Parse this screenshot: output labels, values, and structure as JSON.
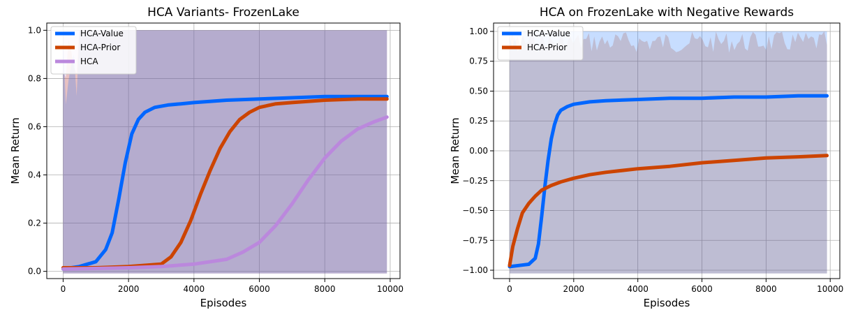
{
  "chart_data": [
    {
      "type": "line",
      "title": "HCA Variants- FrozenLake",
      "xlabel": "Episodes",
      "ylabel": "Mean Return",
      "xlim": [
        -500,
        10300
      ],
      "ylim": [
        -0.03,
        1.03
      ],
      "xticks": [
        0,
        2000,
        4000,
        6000,
        8000,
        10000
      ],
      "yticks": [
        0.0,
        0.2,
        0.4,
        0.6,
        0.8,
        1.0
      ],
      "ytick_labels": [
        "0.0",
        "0.2",
        "0.4",
        "0.6",
        "0.8",
        "1.0"
      ],
      "grid": true,
      "legend": "top-left",
      "series": [
        {
          "name": "HCA-Value",
          "color": "#0066ff",
          "x": [
            0,
            500,
            1000,
            1300,
            1500,
            1700,
            1900,
            2100,
            2300,
            2500,
            2800,
            3200,
            3600,
            4000,
            5000,
            6000,
            7000,
            8000,
            9000,
            9900
          ],
          "y": [
            0.01,
            0.02,
            0.04,
            0.09,
            0.16,
            0.3,
            0.45,
            0.57,
            0.63,
            0.66,
            0.68,
            0.69,
            0.695,
            0.7,
            0.71,
            0.715,
            0.72,
            0.725,
            0.725,
            0.725
          ]
        },
        {
          "name": "HCA-Prior",
          "color": "#cc4400",
          "x": [
            0,
            1000,
            2000,
            3000,
            3300,
            3600,
            3900,
            4200,
            4500,
            4800,
            5100,
            5400,
            5700,
            6000,
            6500,
            7000,
            8000,
            9000,
            9900
          ],
          "y": [
            0.015,
            0.015,
            0.02,
            0.03,
            0.06,
            0.12,
            0.21,
            0.32,
            0.42,
            0.51,
            0.58,
            0.63,
            0.66,
            0.68,
            0.695,
            0.7,
            0.71,
            0.715,
            0.715
          ]
        },
        {
          "name": "HCA",
          "color": "#bb88dd",
          "x": [
            0,
            1000,
            2000,
            3000,
            4000,
            5000,
            5500,
            6000,
            6500,
            7000,
            7500,
            8000,
            8500,
            9000,
            9500,
            9900
          ],
          "y": [
            0.01,
            0.012,
            0.015,
            0.02,
            0.03,
            0.05,
            0.08,
            0.12,
            0.19,
            0.28,
            0.38,
            0.47,
            0.54,
            0.59,
            0.62,
            0.64
          ]
        }
      ]
    },
    {
      "type": "line",
      "title": "HCA on FrozenLake with Negative Rewards",
      "xlabel": "Episodes",
      "ylabel": "Mean Return",
      "xlim": [
        -500,
        10300
      ],
      "ylim": [
        -1.07,
        1.07
      ],
      "xticks": [
        0,
        2000,
        4000,
        6000,
        8000,
        10000
      ],
      "yticks": [
        -1.0,
        -0.75,
        -0.5,
        -0.25,
        0.0,
        0.25,
        0.5,
        0.75,
        1.0
      ],
      "ytick_labels": [
        "−1.00",
        "−0.75",
        "−0.50",
        "−0.25",
        "0.00",
        "0.25",
        "0.50",
        "0.75",
        "1.00"
      ],
      "grid": true,
      "legend": "top-left",
      "series": [
        {
          "name": "HCA-Value",
          "color": "#0066ff",
          "x": [
            0,
            300,
            600,
            800,
            900,
            1000,
            1100,
            1200,
            1300,
            1400,
            1500,
            1600,
            1800,
            2000,
            2500,
            3000,
            4000,
            5000,
            6000,
            7000,
            8000,
            9000,
            9900
          ],
          "y": [
            -0.97,
            -0.96,
            -0.95,
            -0.9,
            -0.78,
            -0.55,
            -0.3,
            -0.08,
            0.1,
            0.22,
            0.3,
            0.34,
            0.37,
            0.39,
            0.41,
            0.42,
            0.43,
            0.44,
            0.44,
            0.45,
            0.45,
            0.46,
            0.46
          ]
        },
        {
          "name": "HCA-Prior",
          "color": "#cc4400",
          "x": [
            0,
            100,
            250,
            400,
            600,
            800,
            1000,
            1300,
            1600,
            2000,
            2500,
            3000,
            4000,
            5000,
            6000,
            7000,
            8000,
            9000,
            9900
          ],
          "y": [
            -0.96,
            -0.8,
            -0.65,
            -0.52,
            -0.44,
            -0.38,
            -0.33,
            -0.29,
            -0.26,
            -0.23,
            -0.2,
            -0.18,
            -0.15,
            -0.13,
            -0.1,
            -0.08,
            -0.06,
            -0.05,
            -0.04
          ]
        }
      ]
    }
  ]
}
